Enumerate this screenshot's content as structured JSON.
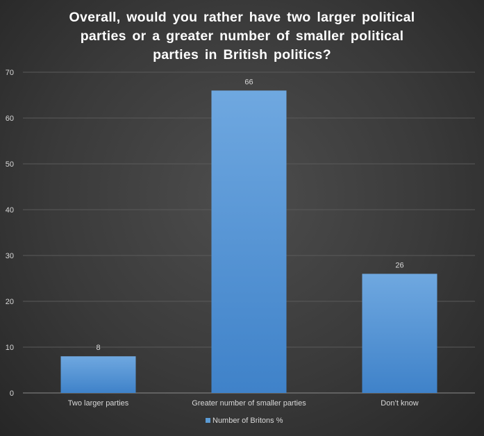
{
  "chart_data": {
    "type": "bar",
    "title_lines": [
      "Overall,  would  you  rather  have  two  larger  political",
      "parties  or  a  greater  number  of  smaller  political",
      "parties  in  British  politics?"
    ],
    "categories": [
      "Two larger parties",
      "Greater number of smaller parties",
      "Don’t know"
    ],
    "series": [
      {
        "name": "Number of Britons %",
        "values": [
          8,
          66,
          26
        ]
      }
    ],
    "ylim": [
      0,
      70
    ],
    "yticks": [
      0,
      10,
      20,
      30,
      40,
      50,
      60,
      70
    ],
    "grid": true,
    "legend_position": "bottom",
    "colors": {
      "bar_top": "#6fa8e0",
      "bar_bottom": "#3f82c9",
      "legend_swatch": "#5b9bd5",
      "text": "#d9d9d9",
      "gridline": "#5a5a5a",
      "axis": "#8c8c8c"
    }
  }
}
